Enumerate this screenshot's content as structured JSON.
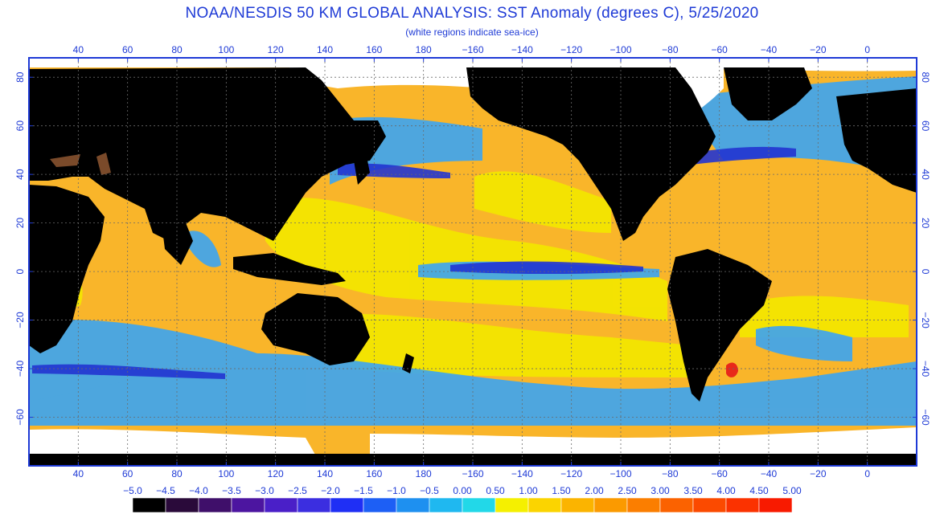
{
  "title": "NOAA/NESDIS 50 KM GLOBAL ANALYSIS: SST Anomaly (degrees C), 5/25/2020",
  "subtitle": "(white regions indicate sea-ice)",
  "axes": {
    "lon_ticks": [
      "40",
      "60",
      "80",
      "100",
      "120",
      "140",
      "160",
      "180",
      "−160",
      "−140",
      "−120",
      "−100",
      "−80",
      "−60",
      "−40",
      "−20",
      "0"
    ],
    "lon_values": [
      40,
      60,
      80,
      100,
      120,
      140,
      160,
      180,
      200,
      220,
      240,
      260,
      280,
      300,
      320,
      340,
      360
    ],
    "lat_ticks": [
      "80",
      "60",
      "40",
      "20",
      "0",
      "−20",
      "−40",
      "−60"
    ],
    "lat_values": [
      80,
      60,
      40,
      20,
      0,
      -20,
      -40,
      -60
    ],
    "lon_range": [
      20,
      380
    ],
    "lat_range": [
      -80,
      88
    ]
  },
  "legend": {
    "labels": [
      "−5.0",
      "−4.5",
      "−4.0",
      "−3.5",
      "−3.0",
      "−2.5",
      "−2.0",
      "−1.5",
      "−1.0",
      "−0.5",
      "0.00",
      "0.50",
      "1.00",
      "1.50",
      "2.00",
      "2.50",
      "3.00",
      "3.50",
      "4.00",
      "4.50",
      "5.00"
    ],
    "colors": [
      "#000000",
      "#2a0a3a",
      "#3f0f6a",
      "#4c15a0",
      "#4a1fc8",
      "#3b2ee0",
      "#1f2ff5",
      "#1d5ff5",
      "#1e90f0",
      "#1fb8f0",
      "#22d8e8",
      "#f5f000",
      "#fbd400",
      "#fbb400",
      "#fb9a00",
      "#fb7e00",
      "#fb6200",
      "#fb4a00",
      "#fb3200",
      "#f81a00"
    ]
  },
  "colors": {
    "land": "#000000",
    "ice": "#ffffff",
    "grid": "#6a6a6a",
    "frame": "#1e3ad6",
    "warm": "#f9b52a",
    "mild": "#f3e600",
    "cool": "#3fa5ee",
    "cold": "#2234d0",
    "hot": "#e8281a",
    "lakes": "#7a4a2a"
  }
}
